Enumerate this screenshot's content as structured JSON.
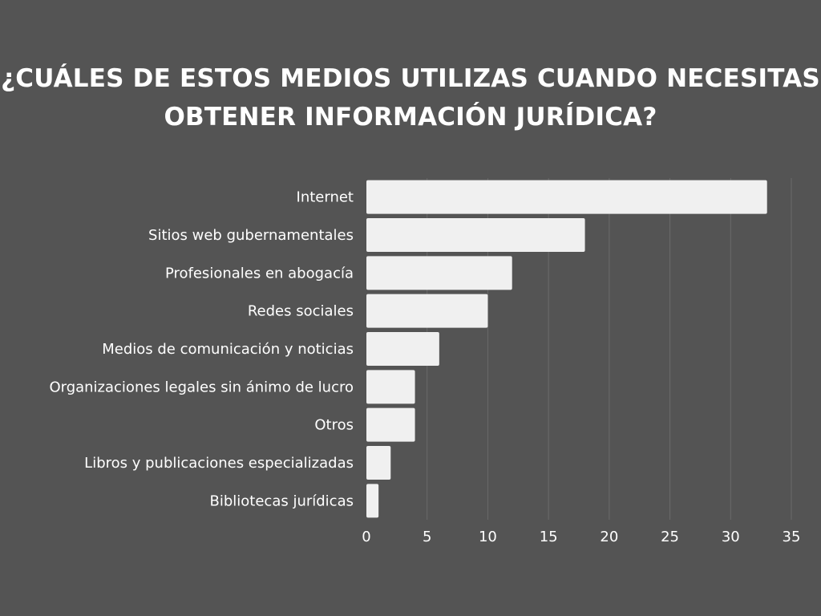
{
  "title_lines": [
    "¿CUÁLES DE ESTOS MEDIOS UTILIZAS CUANDO NECESITAS",
    "OBTENER INFORMACIÓN JURÍDICA?"
  ],
  "colors": {
    "background": "#545454",
    "bar": "#f0f0f0",
    "grid": "#6a6a6a",
    "text": "#ffffff"
  },
  "chart_data": {
    "type": "bar",
    "orientation": "horizontal",
    "title": "¿CUÁLES DE ESTOS MEDIOS UTILIZAS CUANDO NECESITAS OBTENER INFORMACIÓN JURÍDICA?",
    "categories": [
      "Internet",
      "Sitios web gubernamentales",
      "Profesionales en abogacía",
      "Redes sociales",
      "Medios de comunicación y noticias",
      "Organizaciones legales sin ánimo de lucro",
      "Otros",
      "Libros y publicaciones especializadas",
      "Bibliotecas jurídicas"
    ],
    "values": [
      33,
      18,
      12,
      10,
      6,
      4,
      4,
      2,
      1
    ],
    "xlabel": "",
    "ylabel": "",
    "xlim": [
      0,
      35
    ],
    "xticks": [
      "0",
      "5",
      "10",
      "15",
      "20",
      "25",
      "30",
      "35"
    ],
    "grid": "vertical",
    "legend": "none"
  }
}
